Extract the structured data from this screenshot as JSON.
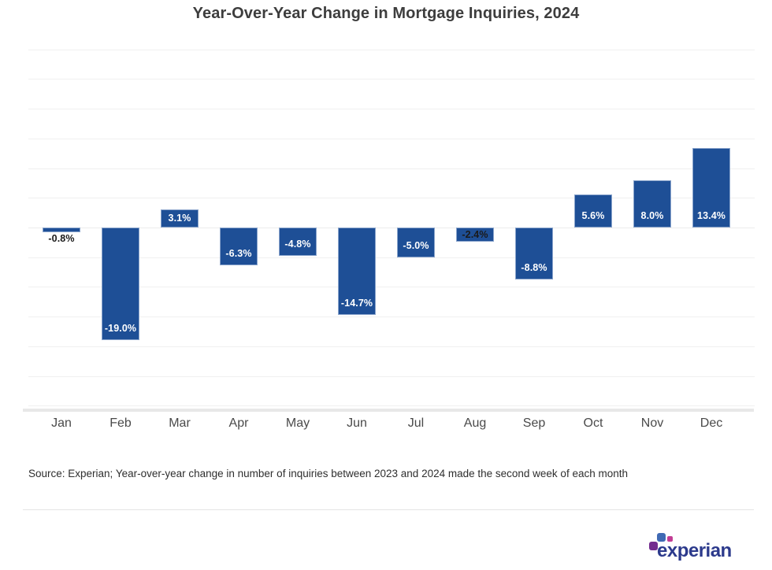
{
  "header": {
    "title": "Year-Over-Year Change in Mortgage Inquiries, 2024"
  },
  "chart_data": {
    "type": "bar",
    "title": "Year-Over-Year Change in Mortgage Inquiries, 2024",
    "categories": [
      "Jan",
      "Feb",
      "Mar",
      "Apr",
      "May",
      "Jun",
      "Jul",
      "Aug",
      "Sep",
      "Oct",
      "Nov",
      "Dec"
    ],
    "values": [
      -0.8,
      -19.0,
      3.1,
      -6.3,
      -4.8,
      -14.7,
      -5.0,
      -2.4,
      -8.8,
      5.6,
      8.0,
      13.4
    ],
    "bar_labels": [
      "-0.8%",
      "-19.0%",
      "3.1%",
      "-6.3%",
      "-4.8%",
      "-14.7%",
      "-5.0%",
      "-2.4%",
      "-8.8%",
      "5.6%",
      "8.0%",
      "13.4%"
    ],
    "label_styles": [
      "outside-dark",
      "inside-light",
      "inside-light",
      "inside-light",
      "inside-light",
      "inside-light",
      "inside-light",
      "inside-dark",
      "inside-light",
      "inside-light",
      "inside-light",
      "inside-light"
    ],
    "xlabel": "",
    "ylabel": "",
    "ylim": [
      -30,
      30
    ],
    "gridline_step": 5,
    "grid": "horizontal-light",
    "legend": "none",
    "y_tick_labels_visible": false,
    "bar_color": "#1E4F96",
    "label_color_light": "#FFFFFF",
    "label_color_dark": "#1A1A1A"
  },
  "footer": {
    "source_note": "Source: Experian; Year-over-year change in number of inquiries between 2023 and 2024 made the second week of each month",
    "logo": {
      "wordmark": "experian",
      "wordmark_color": "#2C3A8C",
      "square_purple": "#732C8F",
      "square_blue": "#406AB4",
      "square_pink": "#C23D94"
    }
  }
}
